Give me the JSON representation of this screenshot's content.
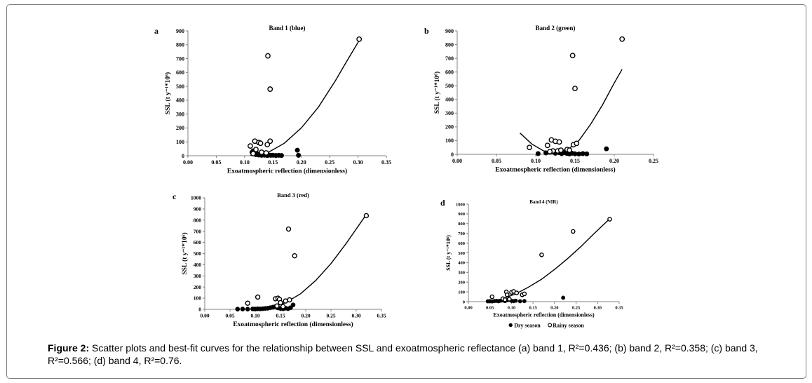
{
  "chart_data": [
    {
      "type": "scatter",
      "panel_label": "a",
      "title": "Band 1 (blue)",
      "xlabel": "Exoatmospheric reflection (dimensionless)",
      "ylabel": "SSL (t y⁻¹*10⁶)",
      "xlim": [
        0,
        0.35
      ],
      "ylim": [
        0,
        900
      ],
      "xticks": [
        "0.00",
        "0.05",
        "0.10",
        "0.15",
        "0.20",
        "0.25",
        "0.30",
        "0.35"
      ],
      "yticks": [
        "0",
        "100",
        "200",
        "300",
        "400",
        "500",
        "600",
        "700",
        "800",
        "900"
      ],
      "series": [
        {
          "name": "Dry season",
          "marker": "filled",
          "points": [
            [
              0.113,
              25
            ],
            [
              0.115,
              35
            ],
            [
              0.116,
              20
            ],
            [
              0.118,
              12
            ],
            [
              0.12,
              8
            ],
            [
              0.122,
              15
            ],
            [
              0.125,
              5
            ],
            [
              0.128,
              10
            ],
            [
              0.13,
              3
            ],
            [
              0.132,
              8
            ],
            [
              0.135,
              4
            ],
            [
              0.138,
              6
            ],
            [
              0.14,
              2
            ],
            [
              0.143,
              5
            ],
            [
              0.146,
              3
            ],
            [
              0.15,
              4
            ],
            [
              0.155,
              2
            ],
            [
              0.16,
              3
            ],
            [
              0.165,
              2
            ],
            [
              0.193,
              40
            ],
            [
              0.195,
              3
            ]
          ]
        },
        {
          "name": "Rainy season",
          "marker": "open",
          "points": [
            [
              0.302,
              840
            ],
            [
              0.141,
              720
            ],
            [
              0.145,
              480
            ],
            [
              0.11,
              70
            ],
            [
              0.118,
              105
            ],
            [
              0.125,
              95
            ],
            [
              0.128,
              90
            ],
            [
              0.14,
              80
            ],
            [
              0.145,
              105
            ],
            [
              0.12,
              45
            ],
            [
              0.13,
              25
            ],
            [
              0.138,
              20
            ],
            [
              0.115,
              15
            ]
          ]
        }
      ],
      "fit": {
        "points": [
          [
            0.11,
            0
          ],
          [
            0.14,
            20
          ],
          [
            0.17,
            90
          ],
          [
            0.2,
            200
          ],
          [
            0.23,
            350
          ],
          [
            0.26,
            540
          ],
          [
            0.28,
            680
          ],
          [
            0.302,
            830
          ]
        ]
      }
    },
    {
      "type": "scatter",
      "panel_label": "b",
      "title": "Band 2 (green)",
      "xlabel": "Exoatmospheric reflection (dimensionless)",
      "ylabel": "SSL (t y⁻¹*10⁶)",
      "xlim": [
        0,
        0.25
      ],
      "ylim": [
        0,
        900
      ],
      "xticks": [
        "0.00",
        "0.05",
        "0.10",
        "0.15",
        "0.20",
        "0.25"
      ],
      "yticks": [
        "0",
        "100",
        "200",
        "300",
        "400",
        "500",
        "600",
        "700",
        "800",
        "900"
      ],
      "series": [
        {
          "name": "Dry season",
          "marker": "filled",
          "points": [
            [
              0.103,
              5
            ],
            [
              0.113,
              10
            ],
            [
              0.118,
              15
            ],
            [
              0.122,
              20
            ],
            [
              0.125,
              8
            ],
            [
              0.128,
              25
            ],
            [
              0.13,
              12
            ],
            [
              0.133,
              5
            ],
            [
              0.135,
              18
            ],
            [
              0.138,
              10
            ],
            [
              0.14,
              6
            ],
            [
              0.143,
              3
            ],
            [
              0.146,
              8
            ],
            [
              0.15,
              4
            ],
            [
              0.155,
              2
            ],
            [
              0.16,
              5
            ],
            [
              0.165,
              3
            ],
            [
              0.19,
              40
            ]
          ]
        },
        {
          "name": "Rainy season",
          "marker": "open",
          "points": [
            [
              0.21,
              840
            ],
            [
              0.147,
              720
            ],
            [
              0.15,
              480
            ],
            [
              0.092,
              50
            ],
            [
              0.115,
              65
            ],
            [
              0.12,
              105
            ],
            [
              0.125,
              95
            ],
            [
              0.13,
              90
            ],
            [
              0.148,
              70
            ],
            [
              0.152,
              80
            ],
            [
              0.122,
              25
            ],
            [
              0.128,
              25
            ],
            [
              0.132,
              30
            ],
            [
              0.14,
              35
            ],
            [
              0.143,
              30
            ],
            [
              0.118,
              20
            ]
          ]
        }
      ],
      "fit": {
        "points": [
          [
            0.08,
            155
          ],
          [
            0.095,
            75
          ],
          [
            0.11,
            25
          ],
          [
            0.125,
            10
          ],
          [
            0.14,
            30
          ],
          [
            0.155,
            100
          ],
          [
            0.17,
            220
          ],
          [
            0.185,
            360
          ],
          [
            0.2,
            520
          ],
          [
            0.21,
            620
          ]
        ]
      }
    },
    {
      "type": "scatter",
      "panel_label": "c",
      "title": "Band 3 (red)",
      "xlabel": "Exoatmospheric reflection (dimensionless)",
      "ylabel": "SSL (t y⁻¹*10⁶)",
      "xlim": [
        0,
        0.35
      ],
      "ylim": [
        0,
        1000
      ],
      "xticks": [
        "0.00",
        "0.05",
        "0.10",
        "0.15",
        "0.20",
        "0.25",
        "0.30",
        "0.35"
      ],
      "yticks": [
        "0",
        "100",
        "200",
        "300",
        "400",
        "500",
        "600",
        "700",
        "800",
        "900",
        "1000"
      ],
      "series": [
        {
          "name": "Dry season",
          "marker": "filled",
          "points": [
            [
              0.065,
              2
            ],
            [
              0.075,
              3
            ],
            [
              0.085,
              2
            ],
            [
              0.095,
              4
            ],
            [
              0.1,
              3
            ],
            [
              0.105,
              5
            ],
            [
              0.11,
              4
            ],
            [
              0.115,
              6
            ],
            [
              0.12,
              8
            ],
            [
              0.125,
              10
            ],
            [
              0.13,
              15
            ],
            [
              0.135,
              20
            ],
            [
              0.14,
              25
            ],
            [
              0.145,
              12
            ],
            [
              0.15,
              8
            ],
            [
              0.155,
              5
            ],
            [
              0.16,
              10
            ],
            [
              0.165,
              6
            ],
            [
              0.17,
              15
            ],
            [
              0.175,
              40
            ]
          ]
        },
        {
          "name": "Rainy season",
          "marker": "open",
          "points": [
            [
              0.32,
              840
            ],
            [
              0.166,
              720
            ],
            [
              0.178,
              480
            ],
            [
              0.085,
              55
            ],
            [
              0.105,
              110
            ],
            [
              0.14,
              95
            ],
            [
              0.145,
              100
            ],
            [
              0.148,
              90
            ],
            [
              0.15,
              60
            ],
            [
              0.16,
              75
            ],
            [
              0.168,
              85
            ],
            [
              0.143,
              30
            ],
            [
              0.155,
              25
            ]
          ]
        }
      ],
      "fit": {
        "points": [
          [
            0.1,
            0
          ],
          [
            0.13,
            15
          ],
          [
            0.16,
            60
          ],
          [
            0.19,
            140
          ],
          [
            0.22,
            260
          ],
          [
            0.25,
            410
          ],
          [
            0.28,
            590
          ],
          [
            0.3,
            720
          ],
          [
            0.32,
            850
          ]
        ]
      }
    },
    {
      "type": "scatter",
      "panel_label": "d",
      "title": "Band 4 (NIR)",
      "xlabel": "Exoatmospheric reflection (dimensionless)",
      "ylabel": "SSL (t y⁻¹*10⁶)",
      "xlim": [
        0,
        0.35
      ],
      "ylim": [
        0,
        1000
      ],
      "xticks": [
        "0.00",
        "0.05",
        "0.10",
        "0.15",
        "0.20",
        "0.25",
        "0.30",
        "0.35"
      ],
      "yticks": [
        "0",
        "100",
        "200",
        "300",
        "400",
        "500",
        "600",
        "700",
        "800",
        "900",
        "1000"
      ],
      "legend": {
        "position": "bottom",
        "entries": [
          "Dry season",
          "Rainy season"
        ]
      },
      "series": [
        {
          "name": "Dry season",
          "marker": "filled",
          "points": [
            [
              0.045,
              3
            ],
            [
              0.05,
              5
            ],
            [
              0.055,
              2
            ],
            [
              0.06,
              6
            ],
            [
              0.065,
              8
            ],
            [
              0.07,
              4
            ],
            [
              0.075,
              10
            ],
            [
              0.08,
              12
            ],
            [
              0.085,
              6
            ],
            [
              0.09,
              15
            ],
            [
              0.095,
              20
            ],
            [
              0.1,
              8
            ],
            [
              0.105,
              5
            ],
            [
              0.11,
              10
            ],
            [
              0.12,
              4
            ],
            [
              0.13,
              6
            ],
            [
              0.22,
              40
            ]
          ]
        },
        {
          "name": "Rainy season",
          "marker": "open",
          "points": [
            [
              0.328,
              845
            ],
            [
              0.243,
              720
            ],
            [
              0.17,
              480
            ],
            [
              0.055,
              50
            ],
            [
              0.08,
              30
            ],
            [
              0.088,
              100
            ],
            [
              0.09,
              70
            ],
            [
              0.1,
              95
            ],
            [
              0.105,
              105
            ],
            [
              0.112,
              90
            ],
            [
              0.125,
              70
            ],
            [
              0.13,
              80
            ],
            [
              0.085,
              20
            ],
            [
              0.095,
              25
            ]
          ]
        }
      ],
      "fit": {
        "points": [
          [
            0.05,
            0
          ],
          [
            0.08,
            30
          ],
          [
            0.11,
            80
          ],
          [
            0.14,
            150
          ],
          [
            0.17,
            230
          ],
          [
            0.2,
            330
          ],
          [
            0.23,
            440
          ],
          [
            0.26,
            560
          ],
          [
            0.29,
            690
          ],
          [
            0.328,
            850
          ]
        ]
      }
    }
  ],
  "caption": {
    "label": "Figure 2:",
    "text": "Scatter plots and best-fit curves for the relationship between SSL and exoatmospheric reflectance (a) band 1, R²=0.436; (b) band 2, R²=0.358; (c) band 3, R²=0.566; (d) band 4, R²=0.76."
  }
}
